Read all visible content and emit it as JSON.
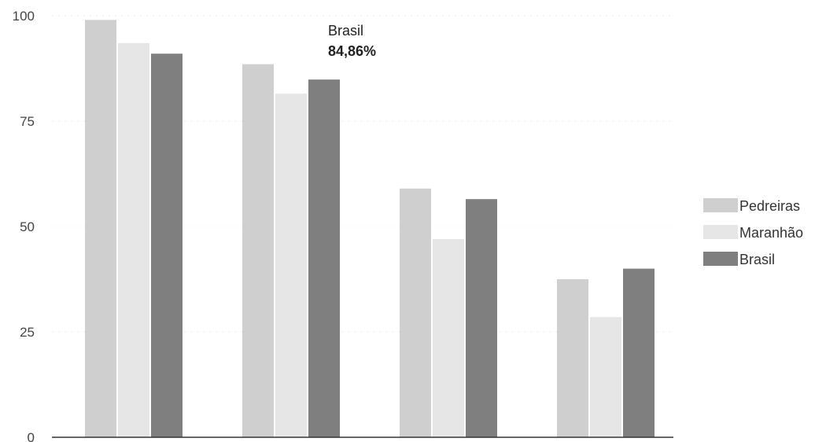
{
  "chart_data": {
    "type": "bar",
    "title": "",
    "xlabel": "",
    "ylabel": "",
    "categories": [
      "",
      "",
      "",
      ""
    ],
    "ylim": [
      0,
      100
    ],
    "yticks": [
      "0",
      "25",
      "50",
      "75",
      "100"
    ],
    "ytick_values": [
      0,
      25,
      50,
      75,
      100
    ],
    "grid": true,
    "legend_position": "right",
    "series": [
      {
        "name": "Pedreiras",
        "color": "#cfcfcf",
        "values": [
          99,
          88.5,
          59,
          37.5
        ]
      },
      {
        "name": "Maranhão",
        "color": "#e6e6e6",
        "values": [
          93.5,
          81.5,
          47,
          28.5
        ]
      },
      {
        "name": "Brasil",
        "color": "#7f7f7f",
        "values": [
          91,
          84.86,
          56.5,
          40
        ]
      }
    ],
    "tooltip": {
      "series": "Brasil",
      "value_text": "84,86%",
      "category_index": 1
    }
  }
}
